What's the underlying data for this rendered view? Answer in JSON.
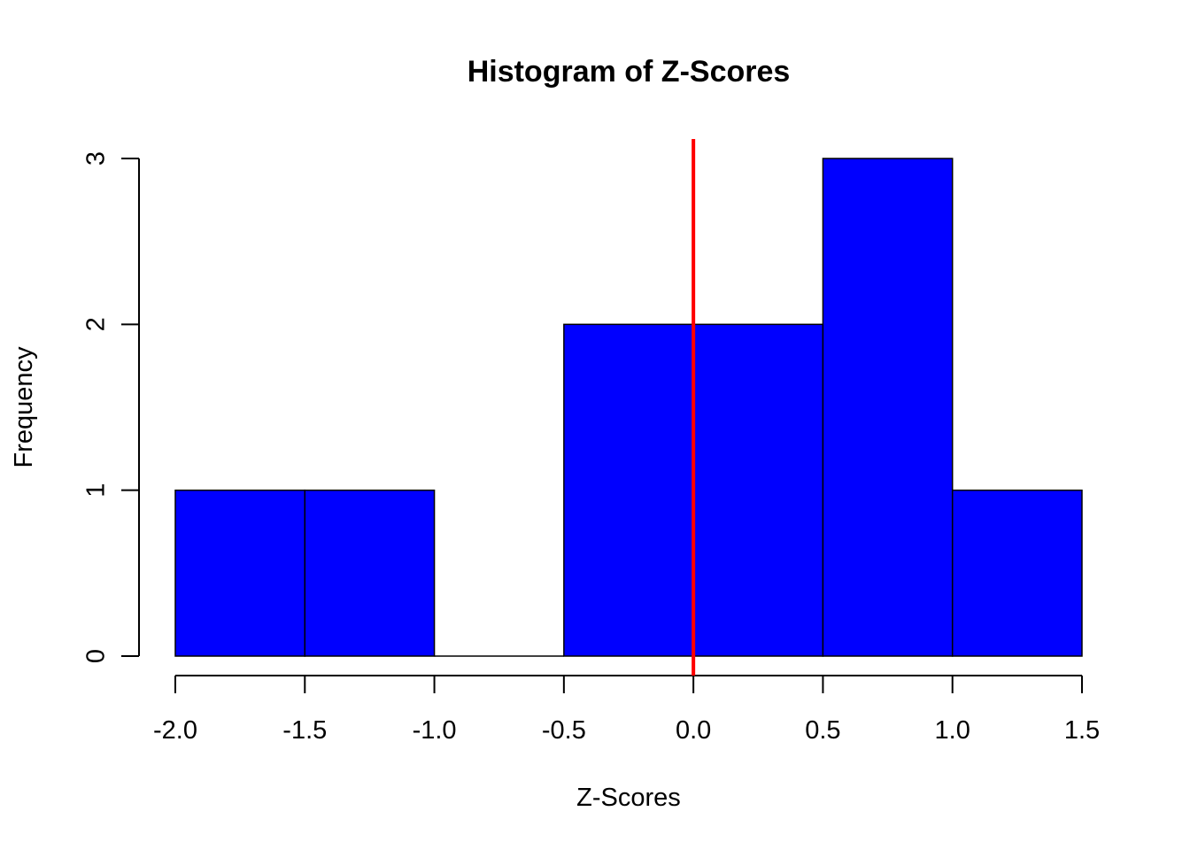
{
  "chart_data": {
    "type": "bar",
    "title": "Histogram of Z-Scores",
    "xlabel": "Z-Scores",
    "ylabel": "Frequency",
    "bins": [
      {
        "start": -2.0,
        "end": -1.5,
        "count": 1
      },
      {
        "start": -1.5,
        "end": -1.0,
        "count": 1
      },
      {
        "start": -1.0,
        "end": -0.5,
        "count": 0
      },
      {
        "start": -0.5,
        "end": 0.0,
        "count": 2
      },
      {
        "start": 0.0,
        "end": 0.5,
        "count": 2
      },
      {
        "start": 0.5,
        "end": 1.0,
        "count": 3
      },
      {
        "start": 1.0,
        "end": 1.5,
        "count": 1
      }
    ],
    "xlim": [
      -2.0,
      1.5
    ],
    "ylim": [
      0,
      3
    ],
    "x_ticks": [
      "-2.0",
      "-1.5",
      "-1.0",
      "-0.5",
      "0.0",
      "0.5",
      "1.0",
      "1.5"
    ],
    "y_ticks": [
      "0",
      "1",
      "2",
      "3"
    ],
    "reference_line": {
      "x": 0.0,
      "color": "#ff0000"
    },
    "bar_color": "#0000ff",
    "grid": false
  }
}
